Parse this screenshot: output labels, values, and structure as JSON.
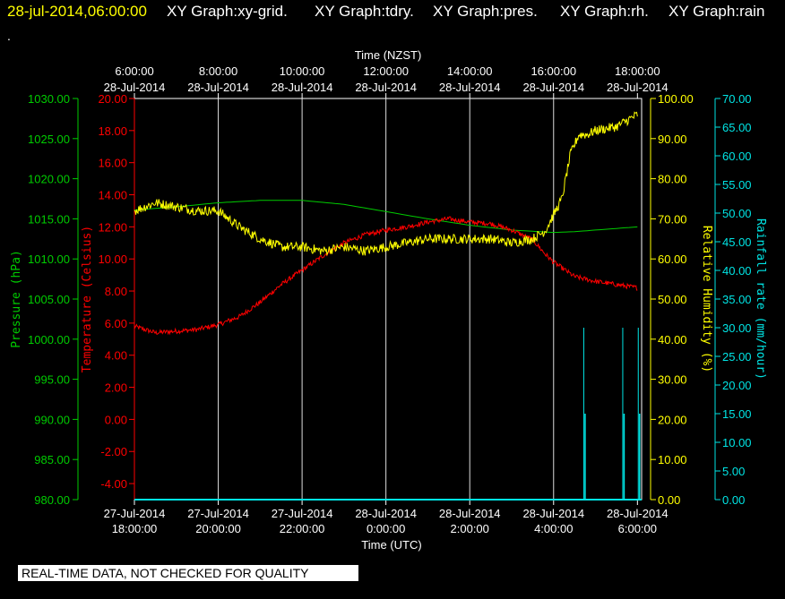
{
  "header": {
    "timestamp": "28-jul-2014,06:00:00",
    "graphs": [
      "XY Graph:xy-grid.",
      "XY Graph:tdry.",
      "XY Graph:pres.",
      "XY Graph:rh.",
      "XY Graph:rain"
    ],
    "dot": "."
  },
  "footer": {
    "notice": "REAL-TIME DATA, NOT CHECKED FOR QUALITY"
  },
  "colors": {
    "background": "#000000",
    "pressure": "#00cc00",
    "temperature": "#ff0000",
    "humidity": "#ffff00",
    "rain": "#00e5e5",
    "grid": "#ffffff",
    "timestamp": "#ffff00"
  },
  "chart_data": {
    "type": "line",
    "top_axis": {
      "title": "Time (NZST)",
      "ticks": [
        {
          "time": "6:00:00",
          "date": "28-Jul-2014"
        },
        {
          "time": "8:00:00",
          "date": "28-Jul-2014"
        },
        {
          "time": "10:00:00",
          "date": "28-Jul-2014"
        },
        {
          "time": "12:00:00",
          "date": "28-Jul-2014"
        },
        {
          "time": "14:00:00",
          "date": "28-Jul-2014"
        },
        {
          "time": "16:00:00",
          "date": "28-Jul-2014"
        },
        {
          "time": "18:00:00",
          "date": "28-Jul-2014"
        }
      ]
    },
    "bottom_axis": {
      "title": "Time (UTC)",
      "ticks": [
        {
          "date": "27-Jul-2014",
          "time": "18:00:00"
        },
        {
          "date": "27-Jul-2014",
          "time": "20:00:00"
        },
        {
          "date": "27-Jul-2014",
          "time": "22:00:00"
        },
        {
          "date": "28-Jul-2014",
          "time": "0:00:00"
        },
        {
          "date": "28-Jul-2014",
          "time": "2:00:00"
        },
        {
          "date": "28-Jul-2014",
          "time": "4:00:00"
        },
        {
          "date": "28-Jul-2014",
          "time": "6:00:00"
        }
      ],
      "hour_range": [
        -6,
        6.1
      ]
    },
    "axes": [
      {
        "key": "pressure",
        "label": "Pressure (hPa)",
        "min": 980,
        "max": 1030,
        "step": 5,
        "decimals": 2
      },
      {
        "key": "temperature",
        "label": "Temperature (Celsius)",
        "min": -5,
        "max": 20,
        "step": 2,
        "decimals": 2,
        "tick_min": -4
      },
      {
        "key": "humidity",
        "label": "Relative Humidity (%)",
        "min": 0,
        "max": 100,
        "step": 10,
        "decimals": 2
      },
      {
        "key": "rain",
        "label": "Rainfall rate (mm/hour)",
        "min": 0,
        "max": 70,
        "step": 5,
        "decimals": 2
      }
    ],
    "grid": true,
    "series": [
      {
        "key": "pressure",
        "name": "Pressure (hPa)",
        "x": [
          -6,
          -5,
          -4,
          -3,
          -2,
          -1,
          0,
          1,
          2,
          3,
          4,
          4.5,
          5,
          5.5,
          6
        ],
        "y": [
          1016.1,
          1016.5,
          1017.0,
          1017.3,
          1017.3,
          1016.8,
          1015.9,
          1015.0,
          1014.2,
          1013.6,
          1013.3,
          1013.4,
          1013.6,
          1013.8,
          1014.0
        ]
      },
      {
        "key": "temperature",
        "name": "Temperature (Celsius)",
        "x": [
          -6,
          -5.5,
          -5,
          -4.5,
          -4,
          -3.5,
          -3,
          -2.5,
          -2,
          -1.5,
          -1,
          -0.5,
          0,
          0.5,
          1,
          1.5,
          2,
          2.5,
          3,
          3.5,
          3.8,
          4,
          4.5,
          5,
          5.5,
          6
        ],
        "y": [
          5.8,
          5.4,
          5.5,
          5.6,
          5.9,
          6.4,
          7.3,
          8.4,
          9.3,
          10.2,
          11.0,
          11.5,
          11.8,
          12.0,
          12.3,
          12.5,
          12.3,
          12.2,
          11.8,
          11.2,
          10.3,
          9.8,
          8.9,
          8.6,
          8.4,
          8.2
        ],
        "noise": 0.15
      },
      {
        "key": "humidity",
        "name": "Relative Humidity (%)",
        "x": [
          -6,
          -5.5,
          -5,
          -4.5,
          -4,
          -3.5,
          -3,
          -2.5,
          -2,
          -1.5,
          -1,
          -0.5,
          0,
          0.5,
          1,
          1.5,
          2,
          2.5,
          3,
          3.5,
          3.8,
          4,
          4.2,
          4.4,
          4.6,
          4.8,
          5,
          5.5,
          6
        ],
        "y": [
          72,
          74,
          73,
          72,
          72,
          68,
          65,
          63,
          63,
          62,
          63,
          62,
          63,
          64,
          65,
          65,
          65,
          65,
          64,
          65,
          67,
          71,
          75,
          86,
          91,
          91,
          92,
          93,
          96
        ],
        "noise": 1.2
      },
      {
        "key": "rain",
        "name": "Rainfall rate (mm/hour)",
        "bars": [
          {
            "x": 4.72,
            "y": 30.0,
            "y2": 15.0
          },
          {
            "x": 5.65,
            "y": 30.0,
            "y2": 15.0
          },
          {
            "x": 6.02,
            "y": 30.0,
            "y2": 15.0
          }
        ]
      }
    ]
  }
}
